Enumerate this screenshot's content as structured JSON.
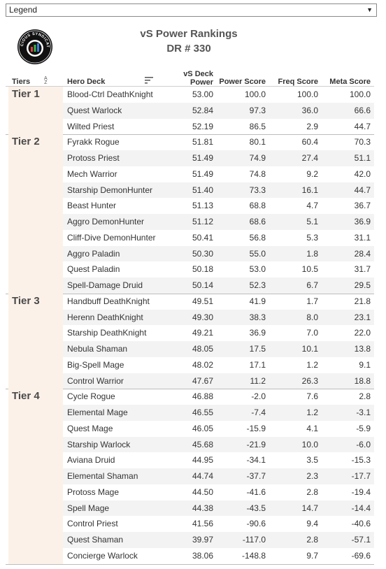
{
  "legend": {
    "label": "Legend"
  },
  "logo": {
    "icon": "vicious-syndicate-logo-icon",
    "text": "VICIOUS SYNDICATE"
  },
  "header": {
    "title": "vS Power Rankings",
    "subtitle": "DR # 330"
  },
  "columns": {
    "tiers": "Tiers",
    "deck": "Hero Deck",
    "power_line1": "vS Deck",
    "power_line2": "Power",
    "power_score": "Power Score",
    "freq_score": "Freq Score",
    "meta_score": "Meta Score"
  },
  "tiers": [
    {
      "label": "Tier 1",
      "rows": [
        {
          "deck": "Blood-Ctrl DeathKnight",
          "power": "53.00",
          "power_score": "100.0",
          "freq": "100.0",
          "meta": "100.0"
        },
        {
          "deck": "Quest Warlock",
          "power": "52.84",
          "power_score": "97.3",
          "freq": "36.0",
          "meta": "66.6"
        },
        {
          "deck": "Wilted Priest",
          "power": "52.19",
          "power_score": "86.5",
          "freq": "2.9",
          "meta": "44.7"
        }
      ]
    },
    {
      "label": "Tier 2",
      "rows": [
        {
          "deck": "Fyrakk Rogue",
          "power": "51.81",
          "power_score": "80.1",
          "freq": "60.4",
          "meta": "70.3"
        },
        {
          "deck": "Protoss Priest",
          "power": "51.49",
          "power_score": "74.9",
          "freq": "27.4",
          "meta": "51.1"
        },
        {
          "deck": "Mech Warrior",
          "power": "51.49",
          "power_score": "74.8",
          "freq": "9.2",
          "meta": "42.0"
        },
        {
          "deck": "Starship DemonHunter",
          "power": "51.40",
          "power_score": "73.3",
          "freq": "16.1",
          "meta": "44.7"
        },
        {
          "deck": "Beast Hunter",
          "power": "51.13",
          "power_score": "68.8",
          "freq": "4.7",
          "meta": "36.7"
        },
        {
          "deck": "Aggro DemonHunter",
          "power": "51.12",
          "power_score": "68.6",
          "freq": "5.1",
          "meta": "36.9"
        },
        {
          "deck": "Cliff-Dive DemonHunter",
          "power": "50.41",
          "power_score": "56.8",
          "freq": "5.3",
          "meta": "31.1"
        },
        {
          "deck": "Aggro Paladin",
          "power": "50.30",
          "power_score": "55.0",
          "freq": "1.8",
          "meta": "28.4"
        },
        {
          "deck": "Quest Paladin",
          "power": "50.18",
          "power_score": "53.0",
          "freq": "10.5",
          "meta": "31.7"
        },
        {
          "deck": "Spell-Damage Druid",
          "power": "50.14",
          "power_score": "52.3",
          "freq": "6.7",
          "meta": "29.5"
        }
      ]
    },
    {
      "label": "Tier 3",
      "rows": [
        {
          "deck": "Handbuff DeathKnight",
          "power": "49.51",
          "power_score": "41.9",
          "freq": "1.7",
          "meta": "21.8"
        },
        {
          "deck": "Herenn DeathKnight",
          "power": "49.30",
          "power_score": "38.3",
          "freq": "8.0",
          "meta": "23.1"
        },
        {
          "deck": "Starship DeathKnight",
          "power": "49.21",
          "power_score": "36.9",
          "freq": "7.0",
          "meta": "22.0"
        },
        {
          "deck": "Nebula Shaman",
          "power": "48.05",
          "power_score": "17.5",
          "freq": "10.1",
          "meta": "13.8"
        },
        {
          "deck": "Big-Spell Mage",
          "power": "48.02",
          "power_score": "17.1",
          "freq": "1.2",
          "meta": "9.1"
        },
        {
          "deck": "Control Warrior",
          "power": "47.67",
          "power_score": "11.2",
          "freq": "26.3",
          "meta": "18.8"
        }
      ]
    },
    {
      "label": "Tier 4",
      "rows": [
        {
          "deck": "Cycle Rogue",
          "power": "46.88",
          "power_score": "-2.0",
          "freq": "7.6",
          "meta": "2.8"
        },
        {
          "deck": "Elemental Mage",
          "power": "46.55",
          "power_score": "-7.4",
          "freq": "1.2",
          "meta": "-3.1"
        },
        {
          "deck": "Quest Mage",
          "power": "46.05",
          "power_score": "-15.9",
          "freq": "4.1",
          "meta": "-5.9"
        },
        {
          "deck": "Starship Warlock",
          "power": "45.68",
          "power_score": "-21.9",
          "freq": "10.0",
          "meta": "-6.0"
        },
        {
          "deck": "Aviana Druid",
          "power": "44.95",
          "power_score": "-34.1",
          "freq": "3.5",
          "meta": "-15.3"
        },
        {
          "deck": "Elemental Shaman",
          "power": "44.74",
          "power_score": "-37.7",
          "freq": "2.3",
          "meta": "-17.7"
        },
        {
          "deck": "Protoss Mage",
          "power": "44.50",
          "power_score": "-41.6",
          "freq": "2.8",
          "meta": "-19.4"
        },
        {
          "deck": "Spell Mage",
          "power": "44.38",
          "power_score": "-43.5",
          "freq": "14.7",
          "meta": "-14.4"
        },
        {
          "deck": "Control Priest",
          "power": "41.56",
          "power_score": "-90.6",
          "freq": "9.4",
          "meta": "-40.6"
        },
        {
          "deck": "Quest Shaman",
          "power": "39.97",
          "power_score": "-117.0",
          "freq": "2.8",
          "meta": "-57.1"
        },
        {
          "deck": "Concierge Warlock",
          "power": "38.06",
          "power_score": "-148.8",
          "freq": "9.7",
          "meta": "-69.6"
        }
      ]
    }
  ]
}
